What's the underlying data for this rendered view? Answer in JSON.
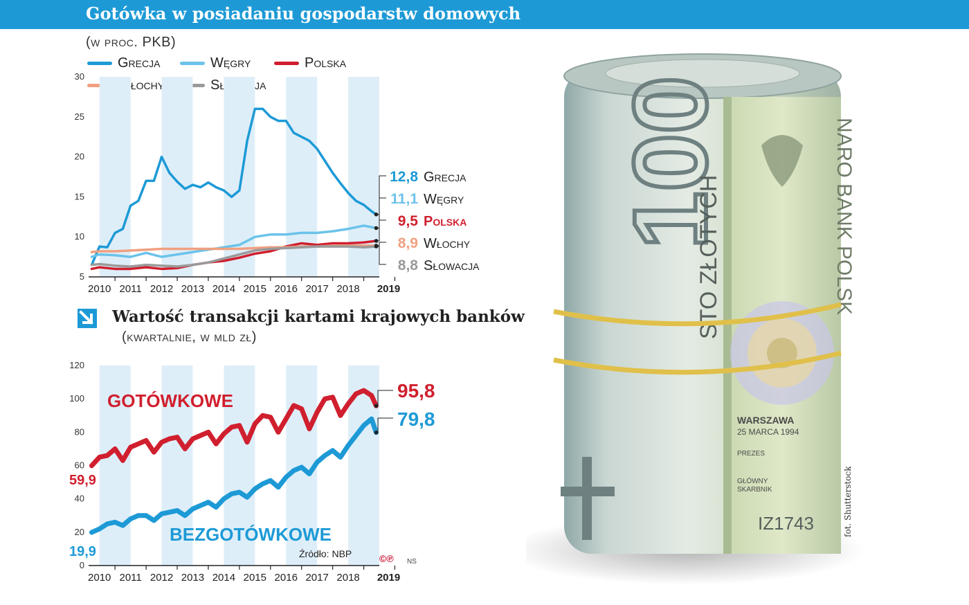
{
  "title": "Gotówka w posiadaniu gospodarstw domowych",
  "colors": {
    "blue": "#1d9ad6",
    "lightblue": "#6cc3ea",
    "red": "#d01f2e",
    "salmon": "#f0a080",
    "gray": "#9a9a9a",
    "band": "#deeef9"
  },
  "chart_data": [
    {
      "type": "line",
      "title": "Gotówka w posiadaniu gospodarstw domowych",
      "subtitle": "(w proc. PKB)",
      "ylim": [
        5,
        30
      ],
      "yticks": [
        "5",
        "10",
        "15",
        "20",
        "25",
        "30"
      ],
      "xticks": [
        "2010",
        "2011",
        "2012",
        "2013",
        "2014",
        "2015",
        "2016",
        "2017",
        "2018",
        "2019"
      ],
      "legend": [
        "Grecja",
        "Węgry",
        "Polska",
        "Włochy",
        "Słowacja"
      ],
      "series": [
        {
          "name": "Grecja",
          "color": "#1d9ad6",
          "end_label": "12,8",
          "x": [
            2009.75,
            2010.0,
            2010.25,
            2010.5,
            2010.75,
            2011.0,
            2011.25,
            2011.5,
            2011.75,
            2012.0,
            2012.25,
            2012.5,
            2012.75,
            2013.0,
            2013.25,
            2013.5,
            2013.75,
            2014.0,
            2014.25,
            2014.5,
            2014.75,
            2015.0,
            2015.25,
            2015.5,
            2015.75,
            2016.0,
            2016.25,
            2016.5,
            2016.75,
            2017.0,
            2017.25,
            2017.5,
            2017.75,
            2018.0,
            2018.25,
            2018.5,
            2018.75,
            2018.9
          ],
          "values": [
            6.5,
            8.8,
            8.7,
            10.5,
            11.0,
            13.9,
            14.5,
            17.0,
            17.0,
            20.0,
            18.0,
            16.9,
            16.0,
            16.5,
            16.2,
            16.8,
            16.2,
            15.8,
            15.0,
            15.8,
            22.0,
            26.0,
            26.0,
            25.0,
            24.5,
            24.5,
            23.0,
            22.5,
            22.0,
            21.0,
            19.5,
            18.0,
            16.7,
            15.5,
            14.5,
            14.0,
            13.2,
            12.8
          ]
        },
        {
          "name": "Węgry",
          "color": "#6cc3ea",
          "end_label": "11,1",
          "x": [
            2009.75,
            2010.0,
            2010.5,
            2011.0,
            2011.5,
            2012.0,
            2012.5,
            2013.0,
            2013.5,
            2014.0,
            2014.5,
            2015.0,
            2015.5,
            2016.0,
            2016.5,
            2017.0,
            2017.5,
            2018.0,
            2018.5,
            2018.9
          ],
          "values": [
            7.5,
            7.8,
            7.7,
            7.5,
            8.0,
            7.5,
            7.8,
            8.1,
            8.4,
            8.7,
            9.0,
            10.0,
            10.3,
            10.3,
            10.5,
            10.5,
            10.7,
            11.0,
            11.4,
            11.1
          ]
        },
        {
          "name": "Polska",
          "color": "#d01f2e",
          "end_label": "9,5",
          "x": [
            2009.75,
            2010.0,
            2010.5,
            2011.0,
            2011.5,
            2012.0,
            2012.5,
            2013.0,
            2013.5,
            2014.0,
            2014.5,
            2015.0,
            2015.5,
            2016.0,
            2016.5,
            2017.0,
            2017.5,
            2018.0,
            2018.5,
            2018.9
          ],
          "values": [
            6.0,
            6.2,
            6.0,
            6.0,
            6.2,
            6.0,
            6.1,
            6.5,
            6.8,
            7.0,
            7.4,
            7.9,
            8.2,
            8.8,
            9.2,
            9.0,
            9.2,
            9.2,
            9.3,
            9.5
          ]
        },
        {
          "name": "Włochy",
          "color": "#f0a080",
          "end_label": "8,9",
          "x": [
            2009.75,
            2010.0,
            2010.5,
            2011.0,
            2011.5,
            2012.0,
            2012.5,
            2013.0,
            2013.5,
            2014.0,
            2014.5,
            2015.0,
            2015.5,
            2016.0,
            2016.5,
            2017.0,
            2017.5,
            2018.0,
            2018.5,
            2018.9
          ],
          "values": [
            8.1,
            8.2,
            8.2,
            8.3,
            8.4,
            8.5,
            8.5,
            8.5,
            8.5,
            8.5,
            8.5,
            8.6,
            8.7,
            8.7,
            8.8,
            8.8,
            8.9,
            8.9,
            8.9,
            8.9
          ]
        },
        {
          "name": "Słowacja",
          "color": "#9a9a9a",
          "end_label": "8,8",
          "x": [
            2009.75,
            2010.0,
            2010.5,
            2011.0,
            2011.5,
            2012.0,
            2012.5,
            2013.0,
            2013.5,
            2014.0,
            2014.5,
            2015.0,
            2015.5,
            2016.0,
            2016.5,
            2017.0,
            2017.5,
            2018.0,
            2018.5,
            2018.9
          ],
          "values": [
            6.5,
            6.6,
            6.4,
            6.3,
            6.5,
            6.4,
            6.3,
            6.5,
            6.8,
            7.3,
            7.8,
            8.3,
            8.5,
            8.6,
            8.7,
            8.8,
            8.8,
            8.8,
            8.7,
            8.8
          ]
        }
      ]
    },
    {
      "type": "line",
      "title": "Wartość transakcji kartami krajowych banków",
      "subtitle": "(kwartalnie, w mld zł)",
      "ylim": [
        0,
        120
      ],
      "yticks": [
        "0",
        "20",
        "40",
        "60",
        "80",
        "100",
        "120"
      ],
      "xticks": [
        "2010",
        "2011",
        "2012",
        "2013",
        "2014",
        "2015",
        "2016",
        "2017",
        "2018",
        "2019"
      ],
      "series": [
        {
          "name": "GOTÓWKOWE",
          "color": "#d01f2e",
          "start_label": "59,9",
          "end_label": "95,8",
          "x": [
            2009.75,
            2010.0,
            2010.25,
            2010.5,
            2010.75,
            2011.0,
            2011.25,
            2011.5,
            2011.75,
            2012.0,
            2012.25,
            2012.5,
            2012.75,
            2013.0,
            2013.25,
            2013.5,
            2013.75,
            2014.0,
            2014.25,
            2014.5,
            2014.75,
            2015.0,
            2015.25,
            2015.5,
            2015.75,
            2016.0,
            2016.25,
            2016.5,
            2016.75,
            2017.0,
            2017.25,
            2017.5,
            2017.75,
            2018.0,
            2018.25,
            2018.5,
            2018.75,
            2018.9
          ],
          "values": [
            59.9,
            65,
            66,
            70,
            63,
            71,
            73,
            75,
            68,
            74,
            76,
            77,
            70,
            76,
            78,
            80,
            73,
            79,
            83,
            84,
            74,
            85,
            90,
            89,
            80,
            88,
            96,
            94,
            82,
            92,
            100,
            101,
            90,
            97,
            103,
            105,
            102,
            95.8
          ]
        },
        {
          "name": "BEZGOTÓWKOWE",
          "color": "#1d9ad6",
          "start_label": "19,9",
          "end_label": "79,8",
          "x": [
            2009.75,
            2010.0,
            2010.25,
            2010.5,
            2010.75,
            2011.0,
            2011.25,
            2011.5,
            2011.75,
            2012.0,
            2012.25,
            2012.5,
            2012.75,
            2013.0,
            2013.25,
            2013.5,
            2013.75,
            2014.0,
            2014.25,
            2014.5,
            2014.75,
            2015.0,
            2015.25,
            2015.5,
            2015.75,
            2016.0,
            2016.25,
            2016.5,
            2016.75,
            2017.0,
            2017.25,
            2017.5,
            2017.75,
            2018.0,
            2018.25,
            2018.5,
            2018.75,
            2018.9
          ],
          "values": [
            19.9,
            22,
            25,
            26,
            24,
            28,
            30,
            30,
            27,
            31,
            32,
            33,
            30,
            34,
            36,
            38,
            35,
            40,
            43,
            44,
            41,
            46,
            49,
            51,
            47,
            53,
            57,
            59,
            55,
            62,
            66,
            69,
            65,
            72,
            78,
            84,
            88,
            79.8
          ]
        }
      ]
    }
  ],
  "chart1": {
    "subtitle": "(w proc. PKB)",
    "legend": {
      "grecja": "Grecja",
      "wegry": "Węgry",
      "polska": "Polska",
      "wlochy": "Włochy",
      "slowacja": "Słowacja"
    },
    "labels": {
      "grecja_val": "12,8",
      "grecja_name": "Grecja",
      "wegry_val": "11,1",
      "wegry_name": "Węgry",
      "polska_val": "9,5",
      "polska_name": "Polska",
      "wlochy_val": "8,9",
      "wlochy_name": "Włochy",
      "slowacja_val": "8,8",
      "slowacja_name": "Słowacja"
    }
  },
  "chart2": {
    "title": "Wartość transakcji kartami krajowych banków",
    "subtitle": "(kwartalnie, w mld zł)",
    "gotowkowe": "GOTÓWKOWE",
    "bezgotowkowe": "BEZGOTÓWKOWE",
    "got_start": "59,9",
    "got_end": "95,8",
    "bez_start": "19,9",
    "bez_end": "79,8"
  },
  "source": "Źródło: NBP",
  "copyright": "©℗",
  "author": "NS",
  "photo_credit": "fot. Shutterstock",
  "banknote": {
    "denomination": "100",
    "words": "STO ZŁOTYCH",
    "city": "WARSZAWA",
    "date": "25 MARCA 1994",
    "prezes": "PREZES",
    "skarbnik1": "GŁÓWNY",
    "skarbnik2": "SKARBNIK",
    "serial": "IZ1743",
    "bank": "NARO BANK POLSK"
  }
}
